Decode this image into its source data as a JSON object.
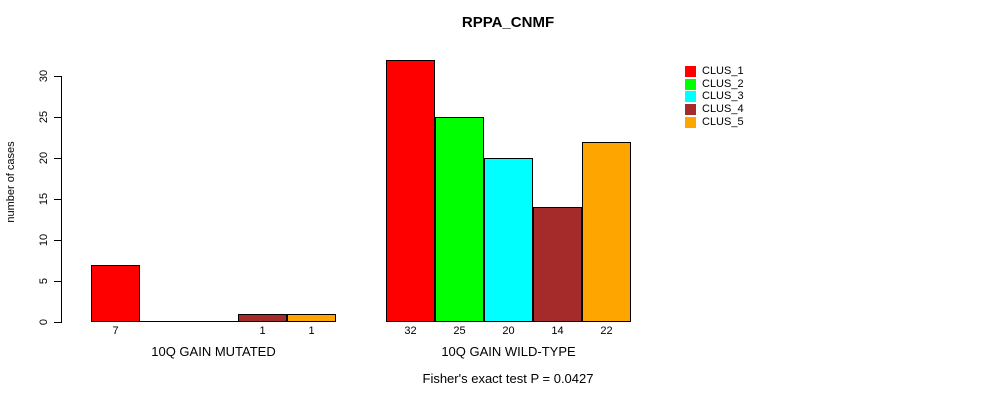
{
  "chart_data": {
    "type": "bar",
    "title": "RPPA_CNMF",
    "ylabel": "number of cases",
    "xlabel": "",
    "annotation": "Fisher's exact test P = 0.0427",
    "grid": false,
    "legend_position": "top-right",
    "ylim": [
      0,
      32
    ],
    "yticks": [
      0,
      5,
      10,
      15,
      20,
      25,
      30
    ],
    "series": [
      {
        "name": "CLUS_1",
        "color": "#FF0000",
        "values": [
          7,
          32
        ]
      },
      {
        "name": "CLUS_2",
        "color": "#00FF00",
        "values": [
          0,
          25
        ]
      },
      {
        "name": "CLUS_3",
        "color": "#00FFFF",
        "values": [
          0,
          20
        ]
      },
      {
        "name": "CLUS_4",
        "color": "#A52A2A",
        "values": [
          1,
          14
        ]
      },
      {
        "name": "CLUS_5",
        "color": "#FFA500",
        "values": [
          1,
          22
        ]
      }
    ],
    "groups": [
      {
        "label": "10Q GAIN MUTATED",
        "values": [
          7,
          0,
          0,
          1,
          1
        ],
        "bar_labels": [
          "7",
          "",
          "",
          "1",
          "1"
        ]
      },
      {
        "label": "10Q GAIN WILD-TYPE",
        "values": [
          32,
          25,
          20,
          14,
          22
        ],
        "bar_labels": [
          "32",
          "25",
          "20",
          "14",
          "22"
        ]
      }
    ],
    "legend": [
      {
        "label": "CLUS_1",
        "color": "#FF0000"
      },
      {
        "label": "CLUS_2",
        "color": "#00FF00"
      },
      {
        "label": "CLUS_3",
        "color": "#00FFFF"
      },
      {
        "label": "CLUS_4",
        "color": "#A52A2A"
      },
      {
        "label": "CLUS_5",
        "color": "#FFA500"
      }
    ]
  }
}
